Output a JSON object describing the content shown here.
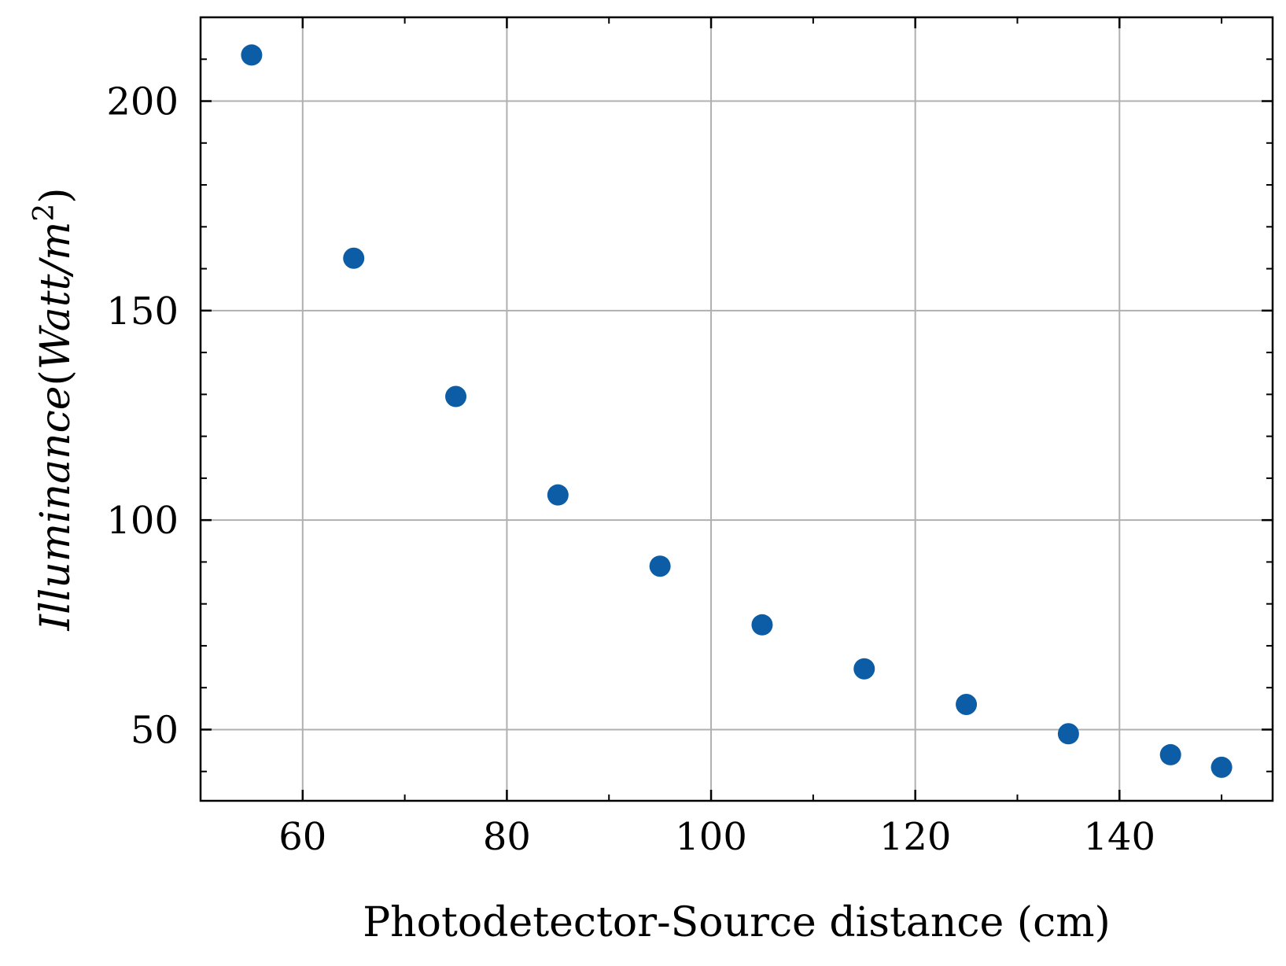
{
  "chart_data": {
    "type": "scatter",
    "title": "",
    "xlabel": "Photodetector-Source distance (cm)",
    "ylabel": {
      "italic": "Illuminance",
      "open": "(",
      "unit_italic": "Watt/m",
      "exponent": "2",
      "close": ")"
    },
    "xlim": [
      50,
      155
    ],
    "ylim": [
      33,
      220
    ],
    "xticks": [
      60,
      80,
      100,
      120,
      140
    ],
    "xticks_minor": [
      50,
      70,
      90,
      110,
      130,
      150
    ],
    "yticks": [
      50,
      100,
      150,
      200
    ],
    "yticks_minor": [
      40,
      60,
      70,
      80,
      90,
      110,
      120,
      130,
      140,
      160,
      170,
      180,
      190,
      210
    ],
    "grid": true,
    "marker_color": "#0C5DA5",
    "grid_color": "#b0b0b0",
    "series": [
      {
        "x": [
          55,
          65,
          75,
          85,
          95,
          105,
          115,
          125,
          135,
          145,
          150
        ],
        "y": [
          211,
          162.5,
          129.5,
          106,
          89,
          75,
          64.5,
          56,
          49,
          44,
          41
        ]
      }
    ]
  }
}
